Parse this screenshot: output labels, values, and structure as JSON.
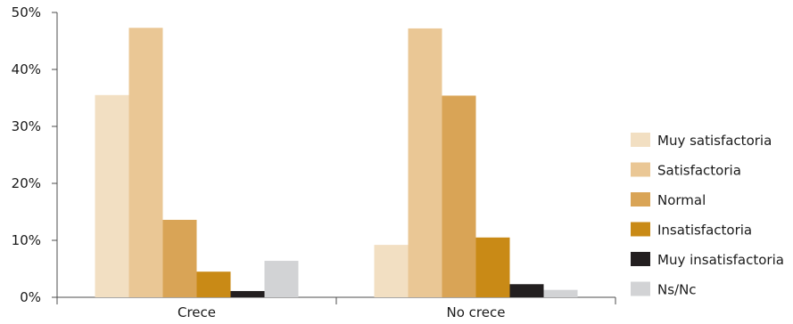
{
  "chart_data": {
    "type": "bar",
    "title": "",
    "xlabel": "",
    "ylabel": "",
    "categories": [
      "Crece",
      "No crece"
    ],
    "ylim": [
      0,
      50
    ],
    "yticks": [
      0,
      10,
      20,
      30,
      40,
      50
    ],
    "ytick_labels": [
      "0%",
      "10%",
      "20%",
      "30%",
      "40%",
      "50%"
    ],
    "y_unit": "%",
    "grid": false,
    "legend_position": "right",
    "series": [
      {
        "name": "Muy satisfactoria",
        "color": "#f2dfc2",
        "values": [
          35.5,
          9.2
        ]
      },
      {
        "name": "Satisfactoria",
        "color": "#eac795",
        "values": [
          47.3,
          47.2
        ]
      },
      {
        "name": "Normal",
        "color": "#d9a456",
        "values": [
          13.6,
          35.4
        ]
      },
      {
        "name": "Insatisfactoria",
        "color": "#c98a16",
        "values": [
          4.5,
          10.5
        ]
      },
      {
        "name": "Muy insatisfactoria",
        "color": "#231f20",
        "values": [
          1.1,
          2.3
        ]
      },
      {
        "name": "Ns/Nc",
        "color": "#d2d3d5",
        "values": [
          6.4,
          1.3
        ]
      }
    ]
  }
}
